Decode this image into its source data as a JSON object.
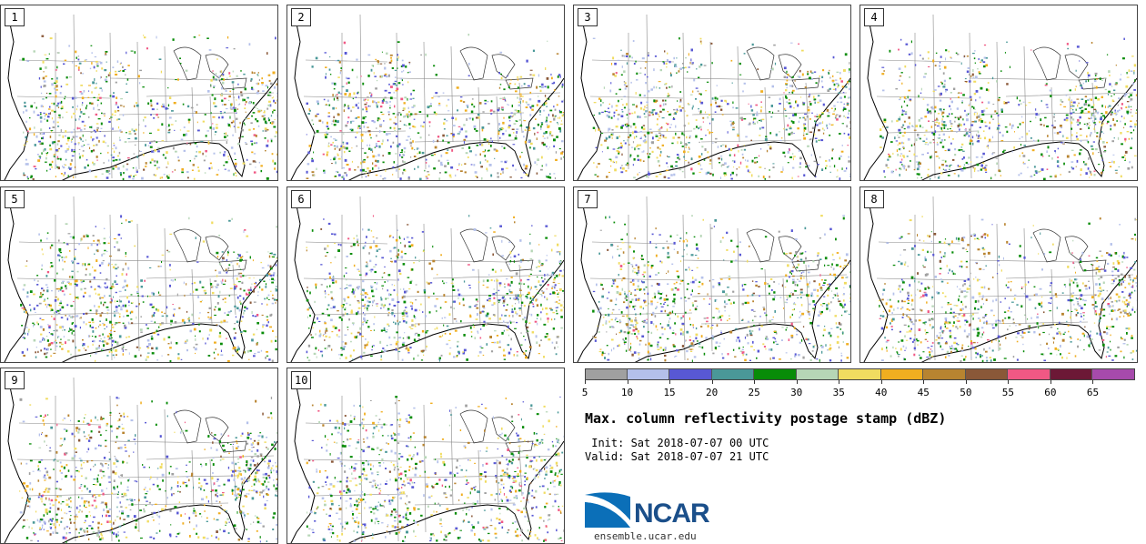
{
  "members": [
    "1",
    "2",
    "3",
    "4",
    "5",
    "6",
    "7",
    "8",
    "9",
    "10"
  ],
  "colorbar": {
    "ticks": [
      "5",
      "10",
      "15",
      "20",
      "25",
      "30",
      "35",
      "40",
      "45",
      "50",
      "55",
      "60",
      "65"
    ],
    "colors": [
      "#a0a0a0",
      "#b4c0ea",
      "#5858d4",
      "#4a9898",
      "#088c08",
      "#b6d6b6",
      "#f0dc60",
      "#f0ae20",
      "#b88430",
      "#8a5838",
      "#f05884",
      "#6c1836",
      "#a64aac"
    ]
  },
  "title": "Max. column reflectivity postage stamp (dBZ)",
  "init_line": " Init: Sat 2018-07-07 00 UTC",
  "valid_line": "Valid: Sat 2018-07-07 21 UTC",
  "logo": {
    "name": "NCAR",
    "url": "ensemble.ucar.edu"
  }
}
